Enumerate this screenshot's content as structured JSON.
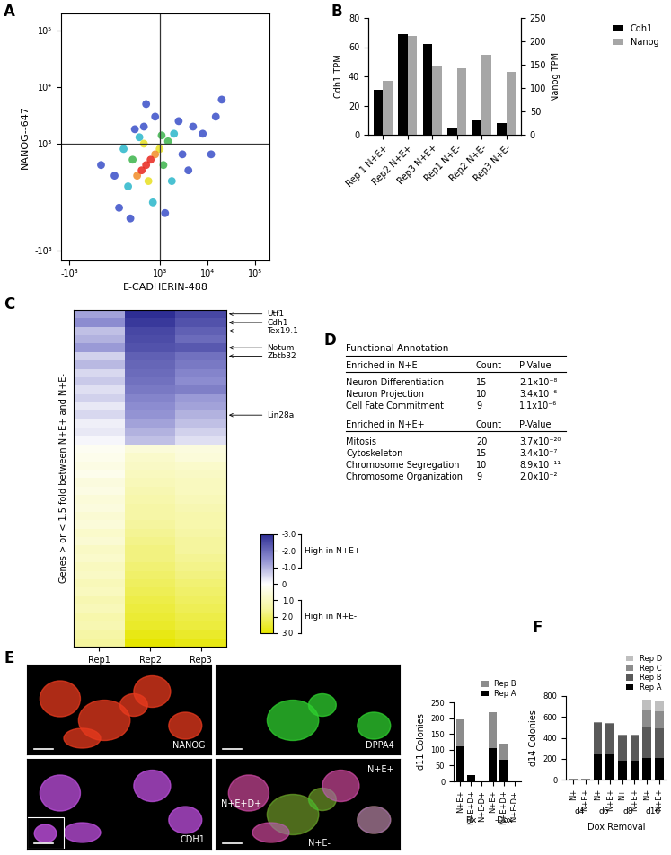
{
  "chart_data": [
    {
      "panel": "A",
      "type": "scatter",
      "x_label": "E-CADHERIN-488",
      "y_label": "NANOG--647",
      "log": true,
      "x": [
        20000,
        12000,
        700,
        450,
        1300,
        900,
        650,
        4000,
        350,
        2500,
        15000,
        -300,
        8000,
        0,
        5000,
        100,
        3000,
        1800,
        550,
        850,
        200,
        2000,
        300,
        1100,
        1500,
        400,
        1200,
        650,
        750,
        1000,
        500,
        900,
        600,
        800,
        700
      ],
      "y": [
        6000,
        800,
        5000,
        1800,
        -300,
        3000,
        2000,
        500,
        -400,
        2500,
        3000,
        600,
        1500,
        400,
        2000,
        -200,
        800,
        300,
        1300,
        -100,
        900,
        1500,
        200,
        1400,
        1100,
        700,
        600,
        1000,
        300,
        900,
        400,
        800,
        500,
        700,
        600
      ],
      "colors": [
        "#3a4fc8",
        "#3a4fc8",
        "#3a4fc8",
        "#3a4fc8",
        "#3a4fc8",
        "#3a4fc8",
        "#3a4fc8",
        "#3a4fc8",
        "#3a4fc8",
        "#3a4fc8",
        "#3a4fc8",
        "#3a4fc8",
        "#3a4fc8",
        "#3a4fc8",
        "#3a4fc8",
        "#3a4fc8",
        "#3a4fc8",
        "#2ab7ca",
        "#2ab7ca",
        "#2ab7ca",
        "#2ab7ca",
        "#2ab7ca",
        "#2ab7ca",
        "#3cb44b",
        "#3cb44b",
        "#3cb44b",
        "#3cb44b",
        "#e8e020",
        "#e8e020",
        "#e8e020",
        "#f28c28",
        "#f28c28",
        "#e8251c",
        "#e8251c",
        "#e8251c"
      ],
      "gate": {
        "x": 1000,
        "y": 1000
      },
      "xlim": [
        -1500,
        200000
      ],
      "ylim": [
        -1500,
        200000
      ],
      "xticks": [
        {
          "value": -1000,
          "label": "-10³"
        },
        {
          "value": 1000,
          "label": "10³"
        },
        {
          "value": 10000,
          "label": "10⁴"
        },
        {
          "value": 100000,
          "label": "10⁵"
        }
      ],
      "yticks": [
        {
          "value": -1000,
          "label": "-10³"
        },
        {
          "value": 1000,
          "label": "10³"
        },
        {
          "value": 10000,
          "label": "10⁴"
        },
        {
          "value": 100000,
          "label": "10⁵"
        }
      ]
    },
    {
      "panel": "B",
      "type": "bar",
      "categories": [
        "Rep 1 N+E+",
        "Rep2 N+E+",
        "Rep3 N+E+",
        "Rep1 N+E-",
        "Rep2 N+E-",
        "Rep3 N+E-"
      ],
      "series": [
        {
          "name": "Cdh1",
          "color": "#000000",
          "values": [
            31,
            69,
            62,
            5,
            10,
            8
          ]
        },
        {
          "name": "Nanog",
          "color": "#a6a6a6",
          "values": [
            116,
            212,
            148,
            142,
            172,
            135
          ],
          "axis": "y2"
        }
      ],
      "y_label": "Cdh1 TPM",
      "y2_label": "Nanog TPM",
      "ylim": [
        0,
        80
      ],
      "yticks": [
        0,
        20,
        40,
        60,
        80
      ],
      "y2lim": [
        0,
        250
      ],
      "y2ticks": [
        0,
        50,
        100,
        150,
        200,
        250
      ],
      "legend": "upper right"
    },
    {
      "panel": "C",
      "type": "heatmap",
      "categories": [
        "Rep1",
        "Rep2",
        "Rep3"
      ],
      "y_label": "Genes > or < 1.5 fold between N+E+ and N+E-",
      "tick_labels": "x",
      "cells": [
        [
          -1.2,
          -3.0,
          -2.6
        ],
        [
          -1.5,
          -2.8,
          -2.4
        ],
        [
          -0.8,
          -2.6,
          -2.2
        ],
        [
          -1.0,
          -2.5,
          -2.0
        ],
        [
          -1.3,
          -2.4,
          -2.3
        ],
        [
          -0.6,
          -2.2,
          -1.9
        ],
        [
          -0.9,
          -2.1,
          -1.8
        ],
        [
          -0.5,
          -2.0,
          -1.6
        ],
        [
          -0.7,
          -1.9,
          -1.5
        ],
        [
          -0.4,
          -1.8,
          -1.7
        ],
        [
          -0.6,
          -1.6,
          -1.3
        ],
        [
          -0.3,
          -1.5,
          -1.2
        ],
        [
          -0.5,
          -1.4,
          -1.0
        ],
        [
          -0.2,
          -1.2,
          -0.8
        ],
        [
          -0.3,
          -1.0,
          -0.6
        ],
        [
          -0.1,
          -0.8,
          -0.4
        ],
        [
          0.2,
          0.6,
          0.5
        ],
        [
          0.3,
          0.8,
          0.6
        ],
        [
          0.4,
          0.9,
          0.8
        ],
        [
          0.3,
          1.0,
          0.9
        ],
        [
          0.5,
          1.1,
          1.0
        ],
        [
          0.4,
          1.2,
          1.0
        ],
        [
          0.6,
          1.3,
          1.1
        ],
        [
          0.5,
          1.4,
          1.2
        ],
        [
          0.7,
          1.4,
          1.3
        ],
        [
          0.6,
          1.5,
          1.3
        ],
        [
          0.8,
          1.6,
          1.4
        ],
        [
          0.7,
          1.7,
          1.5
        ],
        [
          0.9,
          1.8,
          1.5
        ],
        [
          0.8,
          1.8,
          1.6
        ],
        [
          1.0,
          1.9,
          1.7
        ],
        [
          0.9,
          2.0,
          1.8
        ],
        [
          1.1,
          2.1,
          1.9
        ],
        [
          1.0,
          2.2,
          2.0
        ],
        [
          1.2,
          2.3,
          2.1
        ],
        [
          1.1,
          2.4,
          2.2
        ],
        [
          1.3,
          2.5,
          2.3
        ],
        [
          1.2,
          2.6,
          2.4
        ],
        [
          1.4,
          2.8,
          2.6
        ],
        [
          1.5,
          3.0,
          2.8
        ]
      ],
      "annotations": [
        {
          "text": "Utf1",
          "row": 0
        },
        {
          "text": "Cdh1",
          "row": 1
        },
        {
          "text": "Tex19.1",
          "row": 2
        },
        {
          "text": "Notum",
          "row": 4
        },
        {
          "text": "Zbtb32",
          "row": 5
        },
        {
          "text": "Lin28a",
          "row": 12
        }
      ],
      "colorbar": {
        "range": [
          -3,
          3
        ],
        "ticks": [
          {
            "value": -3,
            "label": "-3.0"
          },
          {
            "value": -2,
            "label": "-2.0"
          },
          {
            "value": -1,
            "label": "-1.0"
          },
          0,
          {
            "value": 1,
            "label": "1.0"
          },
          {
            "value": 2,
            "label": "2.0"
          },
          {
            "value": 3,
            "label": "3.0"
          }
        ],
        "brackets": [
          {
            "text": "High in N+E+",
            "from": -3,
            "to": -1
          },
          {
            "text": "High in N+E-",
            "from": 1,
            "to": 3
          }
        ]
      }
    },
    {
      "panel": "E",
      "type": "bar",
      "stacked": true,
      "categories": [
        "N+E+",
        "N+E+D+",
        "N+E-D+",
        "N+E+",
        "N+E+D+",
        "N+E-D+"
      ],
      "groups": [
        "Fix",
        "Fix",
        "Fix",
        "-Dox",
        "-Dox",
        "-Dox"
      ],
      "y_label": "d11 Colonies",
      "series": [
        {
          "name": "Rep A",
          "color": "#000000",
          "values": [
            110,
            20,
            0,
            105,
            68,
            0
          ]
        },
        {
          "name": "Rep B",
          "color": "#8c8c8c",
          "values": [
            87,
            0,
            0,
            115,
            50,
            0
          ]
        }
      ],
      "ylim": [
        0,
        250
      ],
      "yticks": [
        0,
        50,
        100,
        150,
        200,
        250
      ],
      "legend": "lower right"
    },
    {
      "panel": "F",
      "type": "bar",
      "stacked": true,
      "categories": [
        "N+",
        "N+E+",
        "N+",
        "N+E+",
        "N+",
        "N+E+",
        "N+",
        "N+E+"
      ],
      "groups": [
        "d4",
        "d4",
        "d6",
        "d6",
        "d8",
        "d8",
        "d10",
        "d10"
      ],
      "x_label": "Dox Removal",
      "y_label": "d14 Colonies",
      "series": [
        {
          "name": "Rep A",
          "color": "#000000",
          "values": [
            3,
            3,
            245,
            240,
            180,
            178,
            205,
            205
          ]
        },
        {
          "name": "Rep B",
          "color": "#595959",
          "values": [
            1,
            1,
            300,
            295,
            245,
            240,
            290,
            285
          ]
        },
        {
          "name": "Rep C",
          "color": "#8c8c8c",
          "values": [
            1,
            1,
            5,
            5,
            8,
            10,
            175,
            165
          ]
        },
        {
          "name": "Rep D",
          "color": "#bfbfbf",
          "values": [
            0,
            0,
            0,
            0,
            0,
            0,
            95,
            90
          ]
        }
      ],
      "ylim": [
        0,
        800
      ],
      "yticks": [
        0,
        200,
        400,
        600,
        800
      ],
      "legend": "lower right"
    }
  ],
  "table": {
    "panel": "D",
    "title": "Functional Annotation",
    "sections": [
      {
        "header": [
          "Enriched in N+E-",
          "Count",
          "P-Value"
        ],
        "rows": [
          [
            "Neuron Differentiation",
            15,
            "2.1x10⁻⁸"
          ],
          [
            "Neuron Projection",
            10,
            "3.4x10⁻⁶"
          ],
          [
            "Cell Fate Commitment",
            9,
            "1.1x10⁻⁶"
          ]
        ]
      },
      {
        "header": [
          "Enriched in N+E+",
          "Count",
          "P-Value"
        ],
        "rows": [
          [
            "Mitosis",
            20,
            "3.7x10⁻²⁰"
          ],
          [
            "Cytoskeleton",
            15,
            "3.4x10⁻⁷"
          ],
          [
            "Chromosome Segregation",
            10,
            "8.9x10⁻¹¹"
          ],
          [
            "Chromosome Organization",
            9,
            "2.0x10⁻²"
          ]
        ]
      }
    ]
  },
  "images": {
    "channels": [
      {
        "label": "NANOG",
        "color": "#e83a1e"
      },
      {
        "label": "DPPA4",
        "color": "#2fd02f"
      },
      {
        "label": "CDH1",
        "color": "#c050e0"
      }
    ],
    "merge_labels": [
      "N+E+",
      "N+E+D+",
      "N+E-"
    ]
  }
}
